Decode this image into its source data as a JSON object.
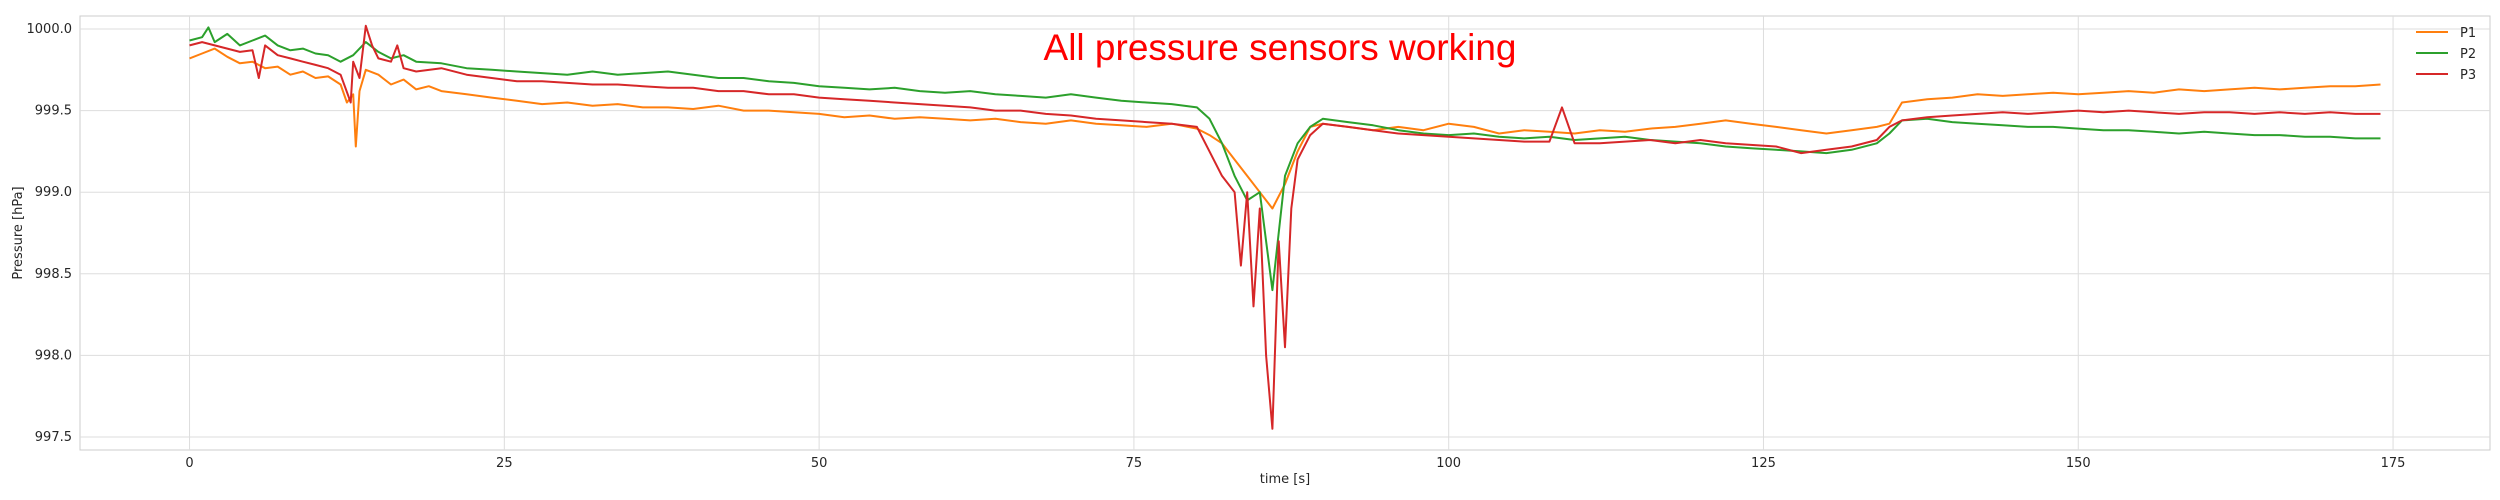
{
  "chart_data": {
    "type": "line",
    "title": "",
    "xlabel": "time [s]",
    "ylabel": "Pressure [hPa]",
    "xlim": [
      -8.7,
      182.7
    ],
    "ylim": [
      997.42,
      1000.08
    ],
    "grid": true,
    "legend_position": "top-right",
    "x_ticks": [
      0,
      25,
      50,
      75,
      100,
      125,
      150,
      175
    ],
    "x_tick_labels": [
      "0",
      "25",
      "50",
      "75",
      "100",
      "125",
      "150",
      "175"
    ],
    "y_ticks": [
      997.5,
      998.0,
      998.5,
      999.0,
      999.5,
      1000.0
    ],
    "y_tick_labels": [
      "997.5",
      "998.0",
      "998.5",
      "999.0",
      "999.5",
      "1000.0"
    ],
    "annotation": {
      "text": "All pressure sensors working",
      "color": "#ff0000"
    },
    "series": [
      {
        "name": "P1",
        "color": "#ff7f0e",
        "x": [
          0,
          1,
          2,
          3,
          4,
          5,
          6,
          7,
          8,
          9,
          10,
          11,
          12,
          12.5,
          13,
          13.2,
          13.5,
          14,
          15,
          16,
          17,
          18,
          19,
          20,
          22,
          24,
          26,
          28,
          30,
          32,
          34,
          36,
          38,
          40,
          42,
          44,
          46,
          48,
          50,
          52,
          54,
          56,
          58,
          60,
          62,
          64,
          66,
          68,
          70,
          72,
          74,
          76,
          78,
          80,
          81,
          82,
          83,
          84,
          85,
          86,
          87,
          88,
          89,
          90,
          92,
          94,
          96,
          98,
          100,
          102,
          104,
          106,
          108,
          110,
          112,
          114,
          116,
          118,
          120,
          122,
          124,
          126,
          128,
          130,
          132,
          134,
          135,
          136,
          138,
          140,
          142,
          144,
          146,
          148,
          150,
          152,
          154,
          156,
          158,
          160,
          162,
          164,
          166,
          168,
          170,
          172,
          174
        ],
        "y": [
          999.82,
          999.85,
          999.88,
          999.83,
          999.79,
          999.8,
          999.76,
          999.77,
          999.72,
          999.74,
          999.7,
          999.71,
          999.66,
          999.55,
          999.6,
          999.28,
          999.62,
          999.75,
          999.72,
          999.66,
          999.69,
          999.63,
          999.65,
          999.62,
          999.6,
          999.58,
          999.56,
          999.54,
          999.55,
          999.53,
          999.54,
          999.52,
          999.52,
          999.51,
          999.53,
          999.5,
          999.5,
          999.49,
          999.48,
          999.46,
          999.47,
          999.45,
          999.46,
          999.45,
          999.44,
          999.45,
          999.43,
          999.42,
          999.44,
          999.42,
          999.41,
          999.4,
          999.42,
          999.39,
          999.35,
          999.3,
          999.2,
          999.1,
          999.0,
          998.9,
          999.05,
          999.25,
          999.4,
          999.42,
          999.4,
          999.38,
          999.4,
          999.38,
          999.42,
          999.4,
          999.36,
          999.38,
          999.37,
          999.36,
          999.38,
          999.37,
          999.39,
          999.4,
          999.42,
          999.44,
          999.42,
          999.4,
          999.38,
          999.36,
          999.38,
          999.4,
          999.42,
          999.55,
          999.57,
          999.58,
          999.6,
          999.59,
          999.6,
          999.61,
          999.6,
          999.61,
          999.62,
          999.61,
          999.63,
          999.62,
          999.63,
          999.64,
          999.63,
          999.64,
          999.65,
          999.65,
          999.66
        ]
      },
      {
        "name": "P2",
        "color": "#2ca02c",
        "x": [
          0,
          1,
          1.5,
          2,
          3,
          4,
          5,
          6,
          7,
          8,
          9,
          10,
          11,
          12,
          13,
          14,
          15,
          16,
          17,
          18,
          20,
          22,
          24,
          26,
          28,
          30,
          32,
          34,
          36,
          38,
          40,
          42,
          44,
          46,
          48,
          50,
          52,
          54,
          56,
          58,
          60,
          62,
          64,
          66,
          68,
          70,
          72,
          74,
          76,
          78,
          80,
          81,
          82,
          83,
          84,
          85,
          86,
          87,
          88,
          89,
          90,
          92,
          94,
          96,
          98,
          100,
          102,
          104,
          106,
          108,
          110,
          112,
          114,
          116,
          118,
          120,
          122,
          124,
          126,
          128,
          130,
          132,
          134,
          135,
          136,
          138,
          140,
          142,
          144,
          146,
          148,
          150,
          152,
          154,
          156,
          158,
          160,
          162,
          164,
          166,
          168,
          170,
          172,
          174
        ],
        "y": [
          999.93,
          999.95,
          1000.01,
          999.92,
          999.97,
          999.9,
          999.93,
          999.96,
          999.9,
          999.87,
          999.88,
          999.85,
          999.84,
          999.8,
          999.84,
          999.92,
          999.86,
          999.82,
          999.84,
          999.8,
          999.79,
          999.76,
          999.75,
          999.74,
          999.73,
          999.72,
          999.74,
          999.72,
          999.73,
          999.74,
          999.72,
          999.7,
          999.7,
          999.68,
          999.67,
          999.65,
          999.64,
          999.63,
          999.64,
          999.62,
          999.61,
          999.62,
          999.6,
          999.59,
          999.58,
          999.6,
          999.58,
          999.56,
          999.55,
          999.54,
          999.52,
          999.45,
          999.3,
          999.1,
          998.95,
          999.0,
          998.4,
          999.1,
          999.3,
          999.4,
          999.45,
          999.43,
          999.41,
          999.38,
          999.36,
          999.35,
          999.36,
          999.34,
          999.33,
          999.34,
          999.32,
          999.33,
          999.34,
          999.32,
          999.31,
          999.3,
          999.28,
          999.27,
          999.26,
          999.25,
          999.24,
          999.26,
          999.3,
          999.36,
          999.44,
          999.45,
          999.43,
          999.42,
          999.41,
          999.4,
          999.4,
          999.39,
          999.38,
          999.38,
          999.37,
          999.36,
          999.37,
          999.36,
          999.35,
          999.35,
          999.34,
          999.34,
          999.33,
          999.33
        ]
      },
      {
        "name": "P3",
        "color": "#d62728",
        "x": [
          0,
          1,
          2,
          3,
          4,
          5,
          5.5,
          6,
          7,
          8,
          9,
          10,
          11,
          12,
          12.8,
          13,
          13.5,
          14,
          14.5,
          15,
          16,
          16.5,
          17,
          18,
          20,
          22,
          24,
          26,
          28,
          30,
          32,
          34,
          36,
          38,
          40,
          42,
          44,
          46,
          48,
          50,
          52,
          54,
          56,
          58,
          60,
          62,
          64,
          66,
          68,
          70,
          72,
          74,
          76,
          78,
          80,
          81,
          82,
          83,
          83.5,
          84,
          84.5,
          85,
          85.5,
          86,
          86.5,
          87,
          87.5,
          88,
          89,
          90,
          92,
          94,
          96,
          98,
          100,
          102,
          104,
          106,
          108,
          109,
          110,
          112,
          114,
          116,
          118,
          120,
          122,
          124,
          126,
          128,
          130,
          132,
          134,
          135,
          136,
          138,
          140,
          142,
          144,
          146,
          148,
          150,
          152,
          154,
          156,
          158,
          160,
          162,
          164,
          166,
          168,
          170,
          172,
          174
        ],
        "y": [
          999.9,
          999.92,
          999.9,
          999.88,
          999.86,
          999.87,
          999.7,
          999.9,
          999.84,
          999.82,
          999.8,
          999.78,
          999.76,
          999.72,
          999.55,
          999.8,
          999.7,
          1000.02,
          999.9,
          999.82,
          999.8,
          999.9,
          999.76,
          999.74,
          999.76,
          999.72,
          999.7,
          999.68,
          999.68,
          999.67,
          999.66,
          999.66,
          999.65,
          999.64,
          999.64,
          999.62,
          999.62,
          999.6,
          999.6,
          999.58,
          999.57,
          999.56,
          999.55,
          999.54,
          999.53,
          999.52,
          999.5,
          999.5,
          999.48,
          999.47,
          999.45,
          999.44,
          999.43,
          999.42,
          999.4,
          999.25,
          999.1,
          999.0,
          998.55,
          999.0,
          998.3,
          998.9,
          998.0,
          997.55,
          998.7,
          998.05,
          998.9,
          999.2,
          999.35,
          999.42,
          999.4,
          999.38,
          999.36,
          999.35,
          999.34,
          999.33,
          999.32,
          999.31,
          999.31,
          999.52,
          999.3,
          999.3,
          999.31,
          999.32,
          999.3,
          999.32,
          999.3,
          999.29,
          999.28,
          999.24,
          999.26,
          999.28,
          999.32,
          999.4,
          999.44,
          999.46,
          999.47,
          999.48,
          999.49,
          999.48,
          999.49,
          999.5,
          999.49,
          999.5,
          999.49,
          999.48,
          999.49,
          999.49,
          999.48,
          999.49,
          999.48,
          999.49,
          999.48,
          999.48
        ]
      }
    ]
  }
}
